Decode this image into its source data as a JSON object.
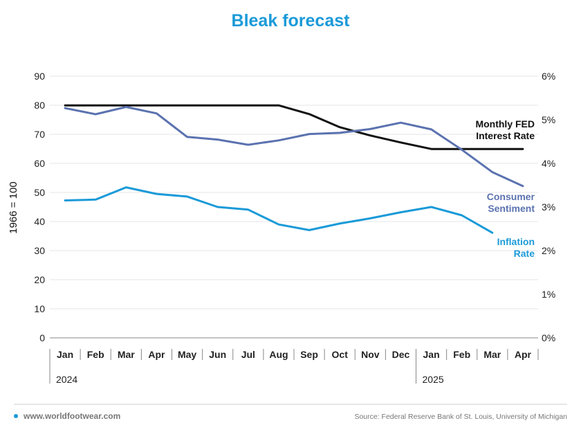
{
  "chart_data": {
    "type": "line",
    "title": "Bleak forecast",
    "ylabel": "1966 = 100",
    "ylim": [
      0,
      90
    ],
    "yticks": [
      "0",
      "10",
      "20",
      "30",
      "40",
      "50",
      "60",
      "70",
      "80",
      "90"
    ],
    "y2lim": [
      0,
      6
    ],
    "y2ticks": [
      "0%",
      "1%",
      "2%",
      "3%",
      "4%",
      "5%",
      "6%"
    ],
    "categories": [
      "Jan",
      "Feb",
      "Mar",
      "Apr",
      "May",
      "Jun",
      "Jul",
      "Aug",
      "Sep",
      "Oct",
      "Nov",
      "Dec",
      "Jan",
      "Feb",
      "Mar",
      "Apr"
    ],
    "years": [
      {
        "label": "2024",
        "start_index": 0
      },
      {
        "label": "2025",
        "start_index": 12
      }
    ],
    "grid": true,
    "series": [
      {
        "name_lines": [
          "Monthly FED",
          "Interest Rate"
        ],
        "axis": "right",
        "color": "#111111",
        "values": [
          5.33,
          5.33,
          5.33,
          5.33,
          5.33,
          5.33,
          5.33,
          5.33,
          5.13,
          4.83,
          4.64,
          4.48,
          4.33,
          4.33,
          4.33,
          4.33
        ]
      },
      {
        "name_lines": [
          "Consumer",
          "Sentiment"
        ],
        "axis": "left",
        "color": "#5b72b0",
        "values": [
          79.0,
          76.9,
          79.4,
          77.2,
          69.1,
          68.2,
          66.4,
          67.9,
          70.1,
          70.5,
          71.8,
          74.0,
          71.7,
          64.7,
          57.0,
          52.2
        ]
      },
      {
        "name_lines": [
          "Inflation",
          "Rate"
        ],
        "axis": "right",
        "color": "#1a9ad8",
        "values": [
          3.15,
          3.17,
          3.45,
          3.3,
          3.24,
          3.0,
          2.94,
          2.6,
          2.47,
          2.62,
          2.74,
          2.88,
          3.0,
          2.81,
          2.41,
          null
        ]
      }
    ]
  },
  "footer": {
    "website": "www.worldfootwear.com",
    "source": "Source: Federal Reserve Bank of St. Louis, University of Michigan"
  },
  "colors": {
    "title": "#1a9ad8",
    "grid": "#e6e6e6",
    "axis": "#888888",
    "bullet": "#1a9ad8"
  }
}
